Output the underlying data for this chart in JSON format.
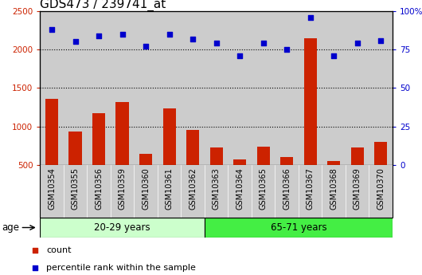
{
  "title": "GDS473 / 239741_at",
  "samples": [
    "GSM10354",
    "GSM10355",
    "GSM10356",
    "GSM10359",
    "GSM10360",
    "GSM10361",
    "GSM10362",
    "GSM10363",
    "GSM10364",
    "GSM10365",
    "GSM10366",
    "GSM10367",
    "GSM10368",
    "GSM10369",
    "GSM10370"
  ],
  "counts": [
    1360,
    930,
    1170,
    1320,
    640,
    1230,
    960,
    730,
    570,
    740,
    600,
    2150,
    550,
    730,
    800
  ],
  "percentile_ranks": [
    88,
    80,
    84,
    85,
    77,
    85,
    82,
    79,
    71,
    79,
    75,
    96,
    71,
    79,
    81
  ],
  "group1_label": "20-29 years",
  "group2_label": "65-71 years",
  "group1_count": 7,
  "group2_count": 8,
  "ylim_left": [
    500,
    2500
  ],
  "ylim_right": [
    0,
    100
  ],
  "yticks_left": [
    500,
    1000,
    1500,
    2000,
    2500
  ],
  "yticks_right": [
    0,
    25,
    50,
    75,
    100
  ],
  "ytick_labels_right": [
    "0",
    "25",
    "50",
    "75",
    "100%"
  ],
  "bar_color": "#cc2200",
  "dot_color": "#0000cc",
  "group1_bg": "#ccffcc",
  "group2_bg": "#44ee44",
  "col_bg": "#cccccc",
  "legend_count_label": "count",
  "legend_pct_label": "percentile rank within the sample",
  "age_label": "age",
  "title_fontsize": 11,
  "tick_fontsize": 7.5,
  "label_fontsize": 8.5,
  "legend_fontsize": 8
}
